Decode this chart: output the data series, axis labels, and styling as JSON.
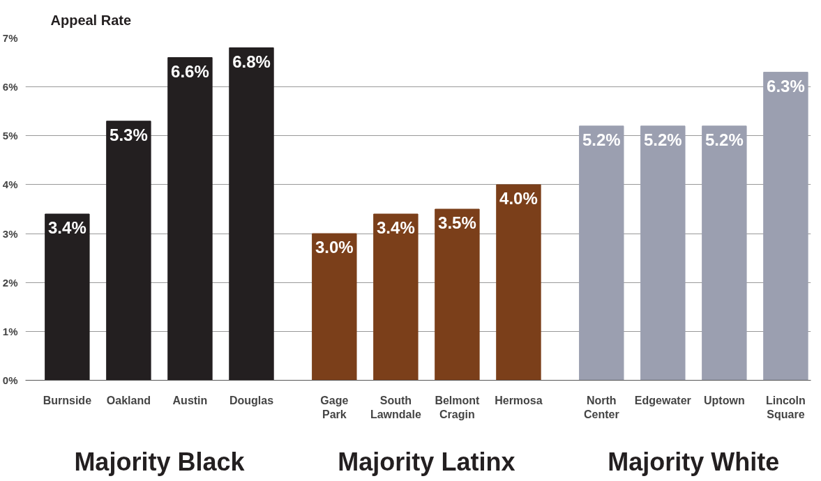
{
  "chart_data": {
    "type": "bar",
    "ylabel": "Appeal Rate",
    "categories": [
      "Burnside",
      "Oakland",
      "Austin",
      "Douglas",
      "Gage\nPark",
      "South\nLawndale",
      "Belmont\nCragin",
      "Hermosa",
      "North\nCenter",
      "Edgewater",
      "Uptown",
      "Lincoln\nSquare"
    ],
    "series": [
      {
        "name": "Majority Black",
        "color": "#231f20",
        "values": [
          3.4,
          5.3,
          6.6,
          6.8,
          null,
          null,
          null,
          null,
          null,
          null,
          null,
          null
        ],
        "value_labels": [
          "3.4%",
          "5.3%",
          "6.6%",
          "6.8%",
          null,
          null,
          null,
          null,
          null,
          null,
          null,
          null
        ]
      },
      {
        "name": "Majority Latinx",
        "color": "#7b3f1a",
        "values": [
          null,
          null,
          null,
          null,
          3.0,
          3.4,
          3.5,
          4.0,
          null,
          null,
          null,
          null
        ],
        "value_labels": [
          null,
          null,
          null,
          null,
          "3.0%",
          "3.4%",
          "3.5%",
          "4.0%",
          null,
          null,
          null,
          null
        ]
      },
      {
        "name": "Majority White",
        "color": "#9b9fb0",
        "values": [
          null,
          null,
          null,
          null,
          null,
          null,
          null,
          null,
          5.2,
          5.2,
          5.2,
          6.3
        ],
        "value_labels": [
          null,
          null,
          null,
          null,
          null,
          null,
          null,
          null,
          "5.2%",
          "5.2%",
          "5.2%",
          "6.3%"
        ]
      }
    ],
    "ylim": [
      0,
      7
    ],
    "yticks": [
      {
        "value": 0,
        "label": "0%"
      },
      {
        "value": 1,
        "label": "1%"
      },
      {
        "value": 2,
        "label": "2%"
      },
      {
        "value": 3,
        "label": "3%"
      },
      {
        "value": 4,
        "label": "4%"
      },
      {
        "value": 5,
        "label": "5%"
      },
      {
        "value": 6,
        "label": "6%"
      },
      {
        "value": 7,
        "label": "7%"
      }
    ],
    "grid": "y",
    "legend": false
  }
}
